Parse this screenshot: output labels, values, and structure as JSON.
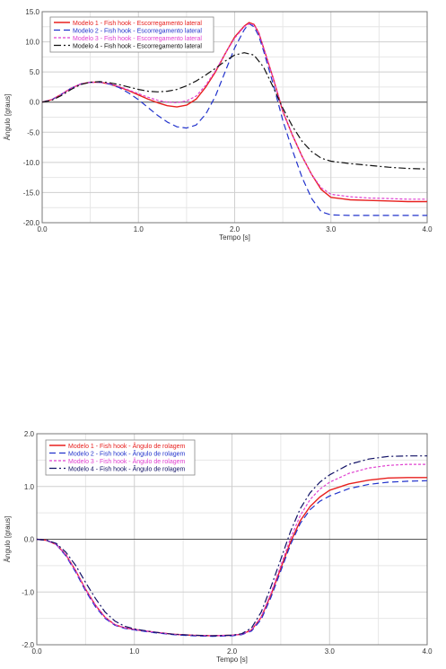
{
  "chart_data": [
    {
      "type": "line",
      "title": "",
      "xlabel": "Tempo [s]",
      "ylabel": "Ângulo [graus]",
      "xlim": [
        0,
        4
      ],
      "ylim": [
        -20,
        15
      ],
      "xticks": [
        "0.0",
        "1.0",
        "2.0",
        "3.0",
        "4.0"
      ],
      "yticks": [
        "15.0",
        "10.0",
        "5.0",
        "0.0",
        "-5.0",
        "-10.0",
        "-15.0",
        "-20.0"
      ],
      "xtick_values": [
        0,
        1,
        2,
        3,
        4
      ],
      "ytick_values": [
        15,
        10,
        5,
        0,
        -5,
        -10,
        -15,
        -20
      ],
      "grid": true,
      "legend_position": "top-left",
      "series": [
        {
          "name": "Modelo 1 - Fish hook - Escorregamento lateral",
          "color": "#e8201e",
          "dash": "solid",
          "width": 1.4,
          "x": [
            0,
            0.1,
            0.2,
            0.3,
            0.4,
            0.5,
            0.6,
            0.7,
            0.8,
            0.9,
            1.0,
            1.1,
            1.2,
            1.3,
            1.4,
            1.5,
            1.6,
            1.7,
            1.8,
            1.9,
            2.0,
            2.1,
            2.15,
            2.2,
            2.25,
            2.3,
            2.4,
            2.5,
            2.6,
            2.7,
            2.8,
            2.9,
            3.0,
            3.2,
            3.4,
            3.6,
            3.8,
            4.0
          ],
          "y": [
            0,
            0.4,
            1.3,
            2.3,
            3.0,
            3.3,
            3.3,
            3.0,
            2.5,
            1.9,
            1.2,
            0.5,
            -0.1,
            -0.6,
            -0.8,
            -0.5,
            0.5,
            2.5,
            5.0,
            8.0,
            10.8,
            12.6,
            13.2,
            12.9,
            11.5,
            9.0,
            4.0,
            -1.5,
            -5.5,
            -9.0,
            -12.0,
            -14.5,
            -15.8,
            -16.2,
            -16.3,
            -16.4,
            -16.5,
            -16.5
          ]
        },
        {
          "name": "Modelo 2 - Fish hook - Escorregamento lateral",
          "color": "#2233cc",
          "dash": "7,4",
          "width": 1.2,
          "x": [
            0,
            0.1,
            0.2,
            0.3,
            0.4,
            0.5,
            0.6,
            0.7,
            0.8,
            0.9,
            1.0,
            1.1,
            1.2,
            1.3,
            1.4,
            1.5,
            1.6,
            1.7,
            1.8,
            1.9,
            2.0,
            2.1,
            2.15,
            2.2,
            2.25,
            2.3,
            2.4,
            2.5,
            2.6,
            2.7,
            2.8,
            2.9,
            3.0,
            3.2,
            3.4,
            3.6,
            3.8,
            4.0
          ],
          "y": [
            0,
            0.4,
            1.3,
            2.3,
            3.0,
            3.3,
            3.3,
            3.0,
            2.4,
            1.5,
            0.4,
            -0.9,
            -2.2,
            -3.3,
            -4.1,
            -4.3,
            -3.8,
            -2.0,
            1.0,
            5.0,
            9.0,
            12.0,
            13.0,
            12.5,
            11.0,
            8.5,
            3.0,
            -3.0,
            -8.0,
            -12.5,
            -16.0,
            -18.2,
            -18.7,
            -18.8,
            -18.8,
            -18.8,
            -18.8,
            -18.8
          ]
        },
        {
          "name": "Modelo 3 - Fish hook - Escorregamento lateral",
          "color": "#e040d0",
          "dash": "3,2",
          "width": 1.2,
          "x": [
            0,
            0.1,
            0.2,
            0.3,
            0.4,
            0.5,
            0.6,
            0.7,
            0.8,
            0.9,
            1.0,
            1.1,
            1.2,
            1.3,
            1.4,
            1.5,
            1.6,
            1.7,
            1.8,
            1.9,
            2.0,
            2.1,
            2.15,
            2.2,
            2.25,
            2.3,
            2.4,
            2.5,
            2.6,
            2.7,
            2.8,
            2.9,
            3.0,
            3.2,
            3.4,
            3.6,
            3.8,
            4.0
          ],
          "y": [
            0,
            0.4,
            1.3,
            2.3,
            3.0,
            3.3,
            3.3,
            3.1,
            2.6,
            2.0,
            1.4,
            0.8,
            0.3,
            0.0,
            -0.1,
            0.2,
            1.0,
            2.8,
            5.2,
            8.0,
            10.6,
            12.5,
            13.0,
            12.8,
            11.5,
            9.0,
            4.0,
            -1.5,
            -5.5,
            -9.0,
            -12.0,
            -14.2,
            -15.3,
            -15.7,
            -15.9,
            -16.0,
            -16.1,
            -16.1
          ]
        },
        {
          "name": "Modelo 4 - Fish hook - Escorregamento lateral",
          "color": "#111111",
          "dash": "8,3,2,3",
          "width": 1.2,
          "x": [
            0,
            0.1,
            0.2,
            0.3,
            0.4,
            0.5,
            0.6,
            0.7,
            0.8,
            0.9,
            1.0,
            1.1,
            1.2,
            1.3,
            1.4,
            1.5,
            1.6,
            1.7,
            1.8,
            1.9,
            2.0,
            2.1,
            2.2,
            2.3,
            2.4,
            2.5,
            2.6,
            2.7,
            2.8,
            2.9,
            3.0,
            3.2,
            3.4,
            3.6,
            3.8,
            4.0
          ],
          "y": [
            0,
            0.3,
            1.1,
            2.1,
            2.9,
            3.3,
            3.4,
            3.2,
            2.9,
            2.5,
            2.1,
            1.8,
            1.7,
            1.8,
            2.1,
            2.7,
            3.5,
            4.5,
            5.6,
            6.8,
            7.8,
            8.2,
            7.8,
            5.8,
            2.5,
            -1.0,
            -4.0,
            -6.5,
            -8.2,
            -9.3,
            -9.8,
            -10.2,
            -10.5,
            -10.8,
            -11.0,
            -11.1
          ]
        }
      ]
    },
    {
      "type": "line",
      "title": "",
      "xlabel": "Tempo [s]",
      "ylabel": "Ângulo [graus]",
      "xlim": [
        0,
        4
      ],
      "ylim": [
        -2,
        2
      ],
      "xticks": [
        "0.0",
        "1.0",
        "2.0",
        "3.0",
        "4.0"
      ],
      "yticks": [
        "2.0",
        "1.0",
        "0.0",
        "-1.0",
        "-2.0"
      ],
      "xtick_values": [
        0,
        1,
        2,
        3,
        4
      ],
      "ytick_values": [
        2,
        1,
        0,
        -1,
        -2
      ],
      "grid": true,
      "legend_position": "top-left",
      "series": [
        {
          "name": "Modelo 1 - Fish hook - Ângulo de rolagem",
          "color": "#e8201e",
          "dash": "solid",
          "width": 1.4,
          "x": [
            0,
            0.1,
            0.2,
            0.3,
            0.4,
            0.5,
            0.6,
            0.7,
            0.8,
            0.9,
            1.0,
            1.2,
            1.4,
            1.6,
            1.8,
            2.0,
            2.1,
            2.2,
            2.3,
            2.4,
            2.5,
            2.6,
            2.7,
            2.8,
            2.9,
            3.0,
            3.2,
            3.4,
            3.6,
            3.8,
            4.0
          ],
          "y": [
            0,
            -0.02,
            -0.1,
            -0.3,
            -0.6,
            -0.95,
            -1.25,
            -1.48,
            -1.62,
            -1.68,
            -1.71,
            -1.76,
            -1.8,
            -1.82,
            -1.83,
            -1.82,
            -1.8,
            -1.72,
            -1.48,
            -1.05,
            -0.55,
            -0.05,
            0.35,
            0.62,
            0.8,
            0.93,
            1.05,
            1.12,
            1.16,
            1.17,
            1.17
          ]
        },
        {
          "name": "Modelo 2 - Fish hook - Ângulo de rolagem",
          "color": "#2233cc",
          "dash": "7,4",
          "width": 1.2,
          "x": [
            0,
            0.1,
            0.2,
            0.3,
            0.4,
            0.5,
            0.6,
            0.7,
            0.8,
            0.9,
            1.0,
            1.2,
            1.4,
            1.6,
            1.8,
            2.0,
            2.1,
            2.2,
            2.3,
            2.4,
            2.5,
            2.6,
            2.7,
            2.8,
            2.9,
            3.0,
            3.2,
            3.4,
            3.6,
            3.8,
            4.0
          ],
          "y": [
            0,
            -0.02,
            -0.1,
            -0.32,
            -0.63,
            -0.98,
            -1.28,
            -1.5,
            -1.63,
            -1.69,
            -1.72,
            -1.77,
            -1.81,
            -1.83,
            -1.84,
            -1.83,
            -1.81,
            -1.74,
            -1.52,
            -1.1,
            -0.6,
            -0.1,
            0.3,
            0.56,
            0.72,
            0.82,
            0.96,
            1.04,
            1.08,
            1.1,
            1.11
          ]
        },
        {
          "name": "Modelo 3 - Fish hook - Ângulo de rolagem",
          "color": "#e040d0",
          "dash": "3,2",
          "width": 1.2,
          "x": [
            0,
            0.1,
            0.2,
            0.3,
            0.4,
            0.5,
            0.6,
            0.7,
            0.8,
            0.9,
            1.0,
            1.2,
            1.4,
            1.6,
            1.8,
            2.0,
            2.1,
            2.2,
            2.3,
            2.4,
            2.5,
            2.6,
            2.7,
            2.8,
            2.9,
            3.0,
            3.2,
            3.4,
            3.6,
            3.8,
            4.0
          ],
          "y": [
            0,
            -0.02,
            -0.1,
            -0.3,
            -0.6,
            -0.95,
            -1.25,
            -1.48,
            -1.62,
            -1.68,
            -1.71,
            -1.76,
            -1.8,
            -1.82,
            -1.83,
            -1.82,
            -1.8,
            -1.72,
            -1.47,
            -1.02,
            -0.5,
            0.02,
            0.45,
            0.75,
            0.95,
            1.08,
            1.25,
            1.35,
            1.4,
            1.42,
            1.42
          ]
        },
        {
          "name": "Modelo 4 - Fish hook - Ângulo de rolagem",
          "color": "#111166",
          "dash": "8,3,2,3",
          "width": 1.2,
          "x": [
            0,
            0.1,
            0.2,
            0.3,
            0.4,
            0.5,
            0.6,
            0.7,
            0.8,
            0.9,
            1.0,
            1.2,
            1.4,
            1.6,
            1.8,
            2.0,
            2.1,
            2.2,
            2.3,
            2.4,
            2.5,
            2.6,
            2.7,
            2.8,
            2.9,
            3.0,
            3.2,
            3.4,
            3.6,
            3.8,
            4.0
          ],
          "y": [
            0,
            -0.02,
            -0.08,
            -0.25,
            -0.5,
            -0.82,
            -1.12,
            -1.38,
            -1.55,
            -1.65,
            -1.7,
            -1.76,
            -1.8,
            -1.82,
            -1.83,
            -1.82,
            -1.79,
            -1.68,
            -1.38,
            -0.9,
            -0.38,
            0.15,
            0.58,
            0.88,
            1.08,
            1.22,
            1.42,
            1.52,
            1.57,
            1.58,
            1.58
          ]
        }
      ]
    }
  ]
}
